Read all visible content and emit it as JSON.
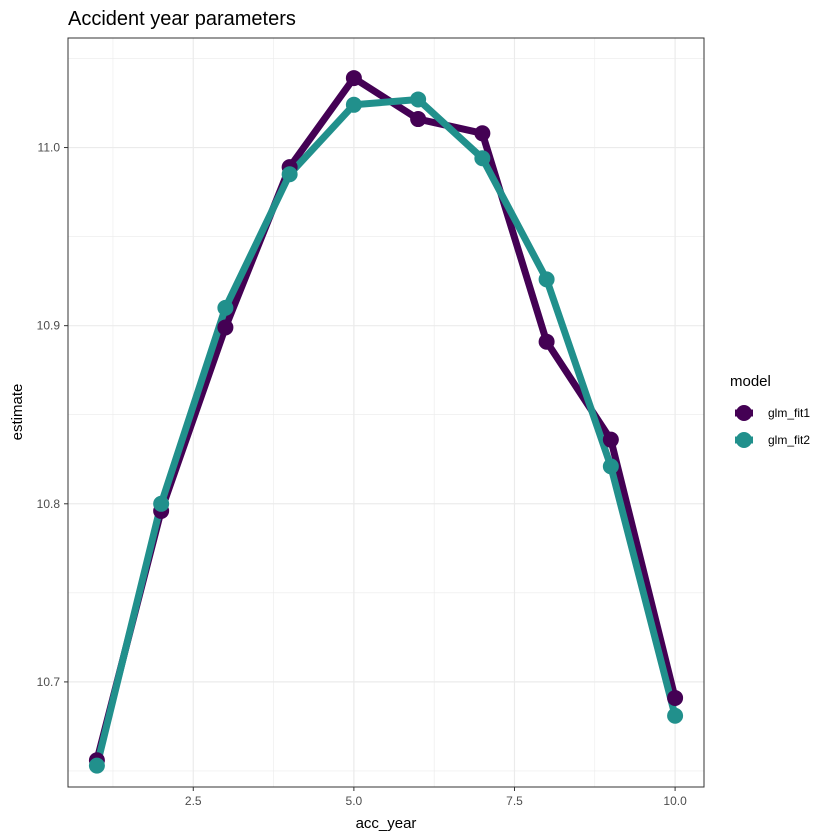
{
  "chart_data": {
    "type": "line",
    "title": "Accident year parameters",
    "xlabel": "acc_year",
    "ylabel": "estimate",
    "xlim": [
      0.55,
      10.45
    ],
    "ylim": [
      10.641,
      11.0615
    ],
    "x_ticks": [
      2.5,
      5.0,
      7.5,
      10.0
    ],
    "x_tick_labels": [
      "2.5",
      "5.0",
      "7.5",
      "10.0"
    ],
    "x_minor_ticks": [
      1.25,
      3.75,
      6.25,
      8.75
    ],
    "y_ticks": [
      10.7,
      10.8,
      10.9,
      11.0
    ],
    "y_tick_labels": [
      "10.7",
      "10.8",
      "10.9",
      "11.0"
    ],
    "y_minor_ticks": [
      10.65,
      10.75,
      10.85,
      10.95,
      11.05
    ],
    "grid": true,
    "legend": {
      "title": "model",
      "position": "right"
    },
    "x": [
      1,
      2,
      3,
      4,
      5,
      6,
      7,
      8,
      9,
      10
    ],
    "series": [
      {
        "name": "glm_fit1",
        "color": "#440154",
        "values": [
          10.656,
          10.796,
          10.899,
          10.989,
          11.039,
          11.016,
          11.008,
          10.891,
          10.836,
          10.691
        ]
      },
      {
        "name": "glm_fit2",
        "color": "#21908C",
        "values": [
          10.653,
          10.8,
          10.91,
          10.985,
          11.024,
          11.027,
          10.994,
          10.926,
          10.821,
          10.681
        ]
      }
    ]
  }
}
